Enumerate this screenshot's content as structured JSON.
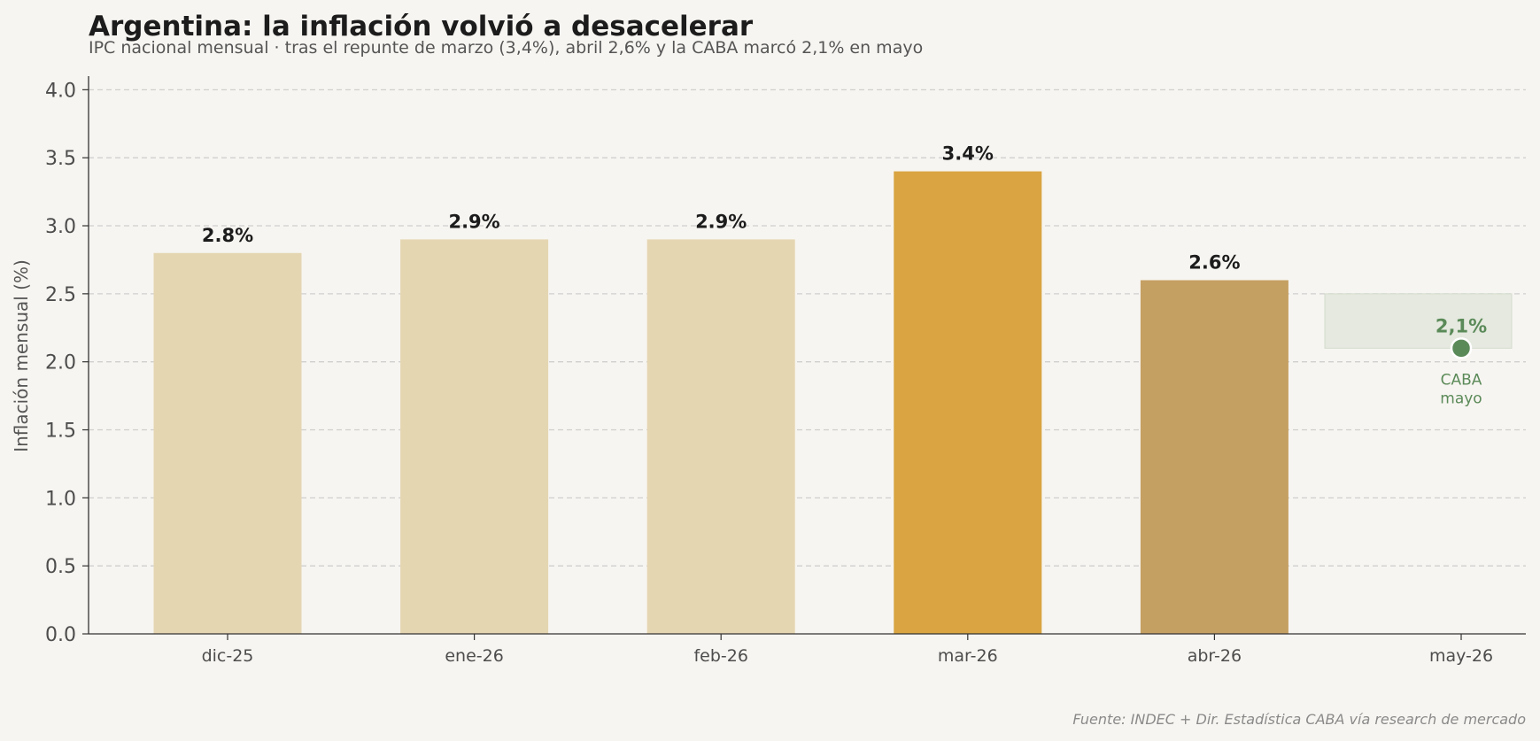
{
  "chart_data": {
    "type": "bar",
    "title": "Argentina: la inflación volvió a desacelerar",
    "subtitle": "IPC nacional mensual · tras el repunte de marzo (3,4%), abril 2,6% y la CABA marcó 2,1% en mayo",
    "ylabel": "Inflación mensual (%)",
    "xlabel": "",
    "ylim": [
      0,
      4.1
    ],
    "yticks": [
      0.0,
      0.5,
      1.0,
      1.5,
      2.0,
      2.5,
      3.0,
      3.5,
      4.0
    ],
    "ytick_labels": [
      "0.0",
      "0.5",
      "1.0",
      "1.5",
      "2.0",
      "2.5",
      "3.0",
      "3.5",
      "4.0"
    ],
    "grid": "horizontal dashed",
    "categories": [
      "dic-25",
      "ene-26",
      "feb-26",
      "mar-26",
      "abr-26",
      "may-26"
    ],
    "bars": [
      {
        "category": "dic-25",
        "value": 2.8,
        "label": "2.8%",
        "color": "#e5d6b2"
      },
      {
        "category": "ene-26",
        "value": 2.9,
        "label": "2.9%",
        "color": "#e5d6b2"
      },
      {
        "category": "feb-26",
        "value": 2.9,
        "label": "2.9%",
        "color": "#e5d6b2"
      },
      {
        "category": "mar-26",
        "value": 3.4,
        "label": "3.4%",
        "color": "#d9a441"
      },
      {
        "category": "abr-26",
        "value": 2.6,
        "label": "2.6%",
        "color": "#c5a063"
      }
    ],
    "point": {
      "category": "may-26",
      "value": 2.1,
      "value_label": "2,1%",
      "label_lines": [
        "CABA",
        "mayo"
      ],
      "color": "#5b8a59",
      "band": [
        2.1,
        2.5
      ],
      "band_color": "#e5e9df"
    },
    "source": "Fuente: INDEC + Dir. Estadística CABA vía research de mercado"
  }
}
